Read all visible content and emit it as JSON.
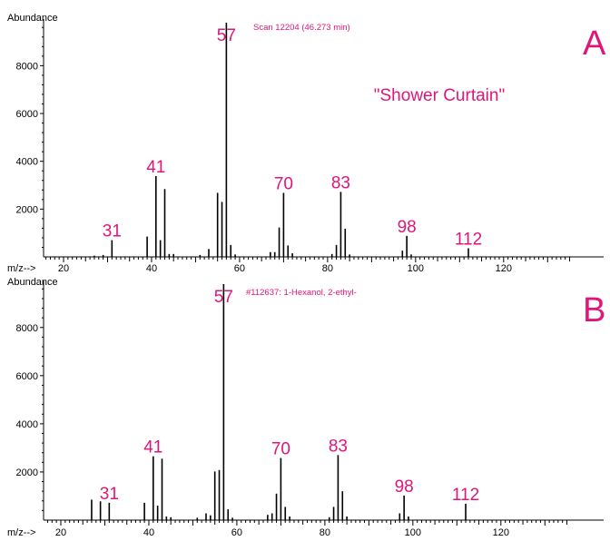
{
  "accent_color": "#e0157a",
  "chart_data": [
    {
      "type": "bar",
      "panel_letter": "A",
      "ylabel": "Abundance",
      "xlabel": "m/z-->",
      "scan_label": "Scan 12204 (46.273 min)",
      "sample_label": "\"Shower Curtain\"",
      "xlim": [
        16,
        136
      ],
      "ylim": [
        0,
        9800
      ],
      "x_ticks": [
        20,
        40,
        60,
        80,
        100,
        120
      ],
      "y_ticks": [
        2000,
        4000,
        6000,
        8000
      ],
      "peaks": [
        {
          "mz": 27,
          "abundance": 50
        },
        {
          "mz": 29,
          "abundance": 80
        },
        {
          "mz": 31,
          "abundance": 700
        },
        {
          "mz": 39,
          "abundance": 850
        },
        {
          "mz": 41,
          "abundance": 3380
        },
        {
          "mz": 42,
          "abundance": 700
        },
        {
          "mz": 43,
          "abundance": 2840
        },
        {
          "mz": 44,
          "abundance": 120
        },
        {
          "mz": 45,
          "abundance": 120
        },
        {
          "mz": 51,
          "abundance": 80
        },
        {
          "mz": 53,
          "abundance": 330
        },
        {
          "mz": 55,
          "abundance": 2680
        },
        {
          "mz": 56,
          "abundance": 2300
        },
        {
          "mz": 57,
          "abundance": 9800
        },
        {
          "mz": 58,
          "abundance": 500
        },
        {
          "mz": 59,
          "abundance": 100
        },
        {
          "mz": 67,
          "abundance": 200
        },
        {
          "mz": 68,
          "abundance": 200
        },
        {
          "mz": 69,
          "abundance": 1230
        },
        {
          "mz": 70,
          "abundance": 2680
        },
        {
          "mz": 71,
          "abundance": 480
        },
        {
          "mz": 72,
          "abundance": 150
        },
        {
          "mz": 81,
          "abundance": 120
        },
        {
          "mz": 82,
          "abundance": 500
        },
        {
          "mz": 83,
          "abundance": 2720
        },
        {
          "mz": 84,
          "abundance": 1180
        },
        {
          "mz": 85,
          "abundance": 100
        },
        {
          "mz": 97,
          "abundance": 260
        },
        {
          "mz": 98,
          "abundance": 880
        },
        {
          "mz": 99,
          "abundance": 100
        },
        {
          "mz": 112,
          "abundance": 360
        }
      ],
      "peak_labels": [
        {
          "mz": 31,
          "text": "31",
          "label_abundance": 700
        },
        {
          "mz": 41,
          "text": "41",
          "label_abundance": 3380
        },
        {
          "mz": 57,
          "text": "57",
          "label_abundance": 9800
        },
        {
          "mz": 70,
          "text": "70",
          "label_abundance": 2680
        },
        {
          "mz": 83,
          "text": "83",
          "label_abundance": 2720
        },
        {
          "mz": 98,
          "text": "98",
          "label_abundance": 880
        },
        {
          "mz": 112,
          "text": "112",
          "label_abundance": 360
        }
      ]
    },
    {
      "type": "bar",
      "panel_letter": "B",
      "ylabel": "Abundance",
      "xlabel": "m/z-->",
      "scan_label": "#112637: 1-Hexanol, 2-ethyl-",
      "xlim": [
        16,
        136
      ],
      "ylim": [
        0,
        9800
      ],
      "x_ticks": [
        20,
        40,
        60,
        80,
        100,
        120
      ],
      "y_ticks": [
        2000,
        4000,
        6000,
        8000
      ],
      "peaks": [
        {
          "mz": 27,
          "abundance": 850
        },
        {
          "mz": 29,
          "abundance": 780
        },
        {
          "mz": 31,
          "abundance": 720
        },
        {
          "mz": 39,
          "abundance": 720
        },
        {
          "mz": 41,
          "abundance": 2650
        },
        {
          "mz": 42,
          "abundance": 600
        },
        {
          "mz": 43,
          "abundance": 2550
        },
        {
          "mz": 44,
          "abundance": 150
        },
        {
          "mz": 45,
          "abundance": 120
        },
        {
          "mz": 51,
          "abundance": 100
        },
        {
          "mz": 53,
          "abundance": 280
        },
        {
          "mz": 54,
          "abundance": 200
        },
        {
          "mz": 55,
          "abundance": 2020
        },
        {
          "mz": 56,
          "abundance": 2080
        },
        {
          "mz": 57,
          "abundance": 9800
        },
        {
          "mz": 58,
          "abundance": 450
        },
        {
          "mz": 59,
          "abundance": 100
        },
        {
          "mz": 67,
          "abundance": 220
        },
        {
          "mz": 68,
          "abundance": 280
        },
        {
          "mz": 69,
          "abundance": 1100
        },
        {
          "mz": 70,
          "abundance": 2580
        },
        {
          "mz": 71,
          "abundance": 550
        },
        {
          "mz": 72,
          "abundance": 150
        },
        {
          "mz": 81,
          "abundance": 120
        },
        {
          "mz": 82,
          "abundance": 550
        },
        {
          "mz": 83,
          "abundance": 2700
        },
        {
          "mz": 84,
          "abundance": 1200
        },
        {
          "mz": 85,
          "abundance": 150
        },
        {
          "mz": 97,
          "abundance": 280
        },
        {
          "mz": 98,
          "abundance": 1020
        },
        {
          "mz": 99,
          "abundance": 150
        },
        {
          "mz": 112,
          "abundance": 680
        }
      ],
      "peak_labels": [
        {
          "mz": 31,
          "text": "31",
          "label_abundance": 720
        },
        {
          "mz": 41,
          "text": "41",
          "label_abundance": 2650
        },
        {
          "mz": 57,
          "text": "57",
          "label_abundance": 9800
        },
        {
          "mz": 70,
          "text": "70",
          "label_abundance": 2580
        },
        {
          "mz": 83,
          "text": "83",
          "label_abundance": 2700
        },
        {
          "mz": 98,
          "text": "98",
          "label_abundance": 1020
        },
        {
          "mz": 112,
          "text": "112",
          "label_abundance": 680
        }
      ]
    }
  ]
}
